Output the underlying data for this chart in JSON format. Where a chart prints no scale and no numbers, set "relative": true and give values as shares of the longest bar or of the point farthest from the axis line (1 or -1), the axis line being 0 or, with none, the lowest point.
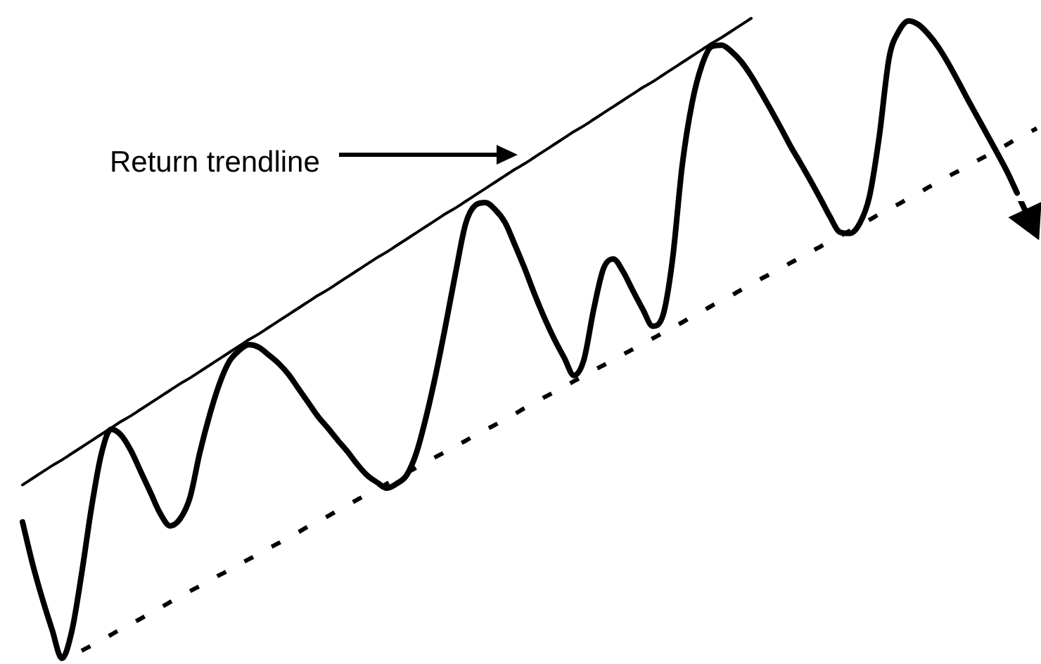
{
  "chart_data": {
    "type": "line",
    "relative": true,
    "marker": "none",
    "categories": [
      null,
      null,
      null,
      null,
      null,
      null,
      null,
      null,
      null,
      null,
      null,
      null,
      null,
      null,
      null,
      null,
      null,
      null,
      null,
      null,
      null,
      null,
      null,
      null,
      null,
      null,
      null,
      null,
      null,
      null,
      null,
      null,
      null,
      null,
      null,
      null,
      null,
      null,
      null,
      null,
      null,
      null,
      null,
      null,
      null,
      null,
      null,
      null,
      null,
      null,
      null,
      null,
      null,
      null,
      null,
      null,
      null,
      null,
      null,
      null,
      null,
      null,
      null,
      null,
      null,
      null,
      null,
      null,
      null,
      null,
      null,
      null,
      null,
      null,
      null,
      null,
      null,
      null,
      null,
      null,
      null,
      null,
      null,
      null,
      null,
      null,
      null,
      null,
      null,
      null,
      null,
      null,
      null,
      null,
      null,
      null,
      null,
      null,
      null,
      null,
      null,
      null,
      null,
      null
    ],
    "series": [
      {
        "color": "#000000",
        "line_style": "solid",
        "values": [
          0.213,
          0.149,
          0.094,
          0.045,
          0,
          0.042,
          0.132,
          0.235,
          0.319,
          0.358,
          0.349,
          0.325,
          0.292,
          0.259,
          0.226,
          0.207,
          0.218,
          0.251,
          0.321,
          0.38,
          0.429,
          0.464,
          0.481,
          0.49,
          0.486,
          0.474,
          0.461,
          0.444,
          0.422,
          0.4,
          0.378,
          0.36,
          0.341,
          0.323,
          0.303,
          0.286,
          0.275,
          0.266,
          0.273,
          0.286,
          0.321,
          0.378,
          0.446,
          0.523,
          0.604,
          0.679,
          0.708,
          0.712,
          0.701,
          0.681,
          0.646,
          0.609,
          0.569,
          0.532,
          0.499,
          0.47,
          0.442,
          0.466,
          0.545,
          0.609,
          0.624,
          0.604,
          0.574,
          0.545,
          0.519,
          0.534,
          0.622,
          0.771,
          0.868,
          0.927,
          0.956,
          0.958,
          0.948,
          0.932,
          0.91,
          0.884,
          0.857,
          0.829,
          0.8,
          0.774,
          0.747,
          0.719,
          0.69,
          0.666,
          0.664,
          0.679,
          0.721,
          0.815,
          0.938,
          0.98,
          0.996,
          0.99,
          0.975,
          0.955,
          0.93,
          0.902,
          0.873,
          0.845,
          0.817,
          0.789,
          0.76,
          0.727,
          null,
          null
        ]
      },
      {
        "name": "Return trendline",
        "color": "#000000",
        "line_style": "solid",
        "values": [
          0.271,
          0.281,
          0.291,
          0.301,
          0.31,
          0.32,
          0.33,
          0.34,
          0.35,
          0.36,
          0.37,
          0.379,
          0.389,
          0.399,
          0.409,
          0.419,
          0.429,
          0.438,
          0.448,
          0.458,
          0.468,
          0.478,
          0.488,
          0.498,
          0.507,
          0.517,
          0.527,
          0.537,
          0.547,
          0.557,
          0.567,
          0.576,
          0.586,
          0.596,
          0.606,
          0.616,
          0.626,
          0.635,
          0.645,
          0.655,
          0.665,
          0.675,
          0.685,
          0.695,
          0.704,
          0.714,
          0.724,
          0.734,
          0.744,
          0.754,
          0.764,
          0.773,
          0.783,
          0.793,
          0.803,
          0.813,
          0.823,
          0.832,
          0.842,
          0.852,
          0.862,
          0.872,
          0.882,
          0.892,
          0.901,
          0.911,
          0.921,
          0.931,
          0.941,
          0.951,
          0.961,
          0.97,
          0.98,
          0.99,
          1,
          null,
          null,
          null,
          null,
          null,
          null,
          null,
          null,
          null,
          null,
          null,
          null,
          null,
          null,
          null,
          null,
          null,
          null,
          null,
          null,
          null,
          null,
          null,
          null,
          null,
          null,
          null,
          null,
          null
        ]
      },
      {
        "color": "#000000",
        "line_style": "dashed",
        "values": [
          null,
          null,
          null,
          null,
          null,
          null,
          0.012,
          0.02,
          0.029,
          0.037,
          0.046,
          0.054,
          0.062,
          0.071,
          0.079,
          0.088,
          0.096,
          0.105,
          0.113,
          0.121,
          0.13,
          0.138,
          0.147,
          0.155,
          0.163,
          0.172,
          0.18,
          0.189,
          0.197,
          0.206,
          0.214,
          0.222,
          0.231,
          0.239,
          0.248,
          0.256,
          0.264,
          0.273,
          0.281,
          0.29,
          0.298,
          0.307,
          0.315,
          0.323,
          0.332,
          0.34,
          0.349,
          0.357,
          0.365,
          0.374,
          0.382,
          0.391,
          0.399,
          0.408,
          0.416,
          0.424,
          0.433,
          0.441,
          0.45,
          0.458,
          0.466,
          0.475,
          0.483,
          0.492,
          0.5,
          0.508,
          0.517,
          0.525,
          0.534,
          0.542,
          0.551,
          0.559,
          0.567,
          0.576,
          0.584,
          0.593,
          0.601,
          0.609,
          0.618,
          0.626,
          0.635,
          0.643,
          0.652,
          0.66,
          0.668,
          0.677,
          0.685,
          0.694,
          0.702,
          0.71,
          0.719,
          0.727,
          0.736,
          0.744,
          0.753,
          0.761,
          0.769,
          0.778,
          0.786,
          0.795,
          0.803,
          0.812,
          0.82,
          0.828
        ]
      }
    ]
  }
}
